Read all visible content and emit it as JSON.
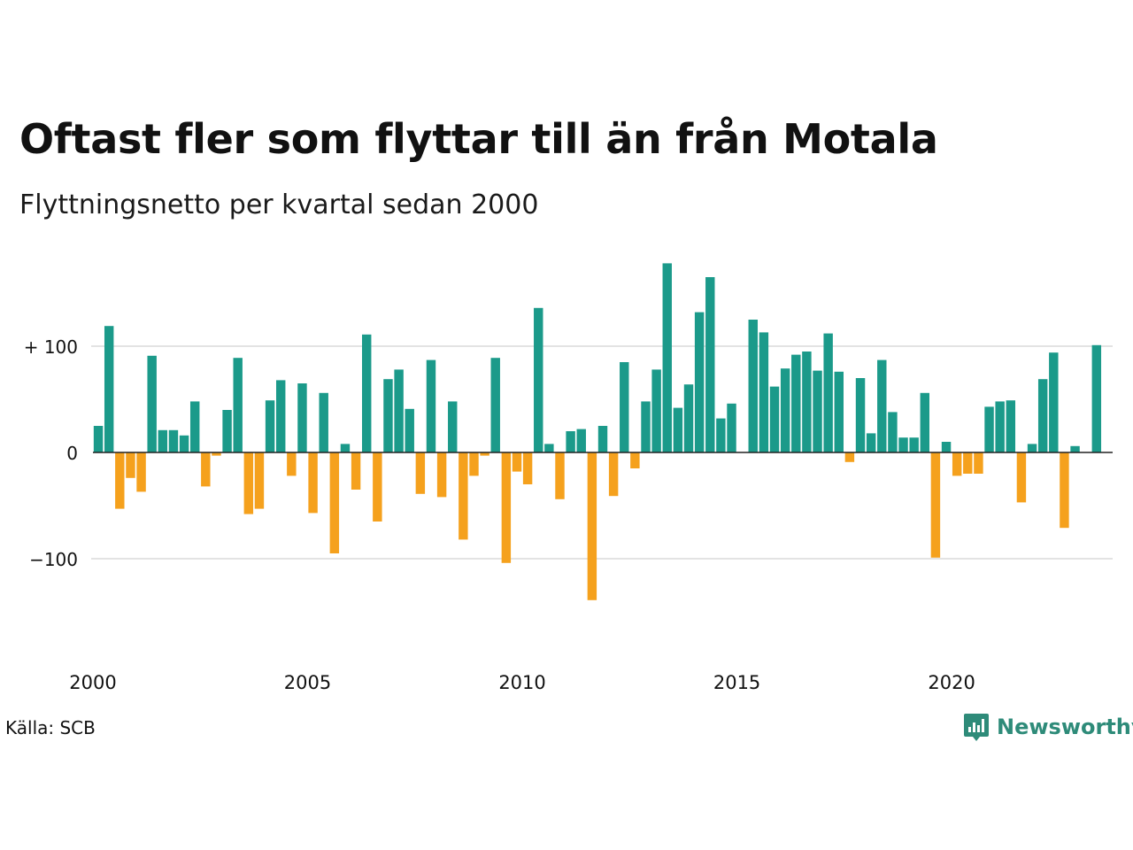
{
  "title": "Oftast fler som flyttar till än från Motala",
  "subtitle": "Flyttningsnetto per kvartal sedan 2000",
  "source": "Källa: SCB",
  "logo": {
    "text": "Newsworthy",
    "icon": "newsworthy-logo-icon"
  },
  "colors": {
    "positive": "#1b9a8a",
    "negative": "#f5a11d",
    "grid": "#e3e3e3",
    "axis": "#222222",
    "logo": "#2e8b79"
  },
  "chart_data": {
    "type": "bar",
    "x_start": "2000 Q1",
    "x_ticks": [
      "2000",
      "2005",
      "2010",
      "2015",
      "2020"
    ],
    "y_ticks": [
      {
        "value": 100,
        "label": "+ 100"
      },
      {
        "value": 0,
        "label": "0"
      },
      {
        "value": -100,
        "label": "−100"
      }
    ],
    "ylim": [
      -160,
      180
    ],
    "grid": true,
    "values": [
      25,
      119,
      -53,
      -24,
      -37,
      91,
      21,
      21,
      16,
      48,
      -32,
      -3,
      40,
      89,
      -58,
      -53,
      49,
      68,
      -22,
      65,
      -57,
      56,
      -95,
      8,
      -35,
      111,
      -65,
      69,
      78,
      41,
      -39,
      87,
      -42,
      48,
      -82,
      -22,
      -3,
      89,
      -104,
      -18,
      -30,
      136,
      8,
      -44,
      20,
      22,
      -139,
      25,
      -41,
      85,
      -15,
      48,
      78,
      178,
      42,
      64,
      132,
      165,
      32,
      46,
      0,
      125,
      113,
      62,
      79,
      92,
      95,
      77,
      112,
      76,
      -9,
      70,
      18,
      87,
      38,
      14,
      14,
      56,
      -99,
      10,
      -22,
      -20,
      -20,
      43,
      48,
      49,
      -47,
      8,
      69,
      94,
      -71,
      6,
      0,
      101
    ]
  }
}
